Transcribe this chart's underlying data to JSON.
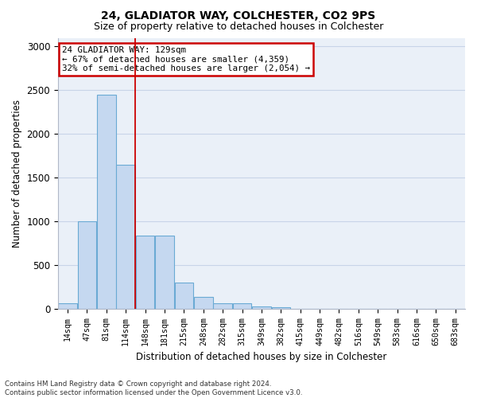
{
  "title1": "24, GLADIATOR WAY, COLCHESTER, CO2 9PS",
  "title2": "Size of property relative to detached houses in Colchester",
  "xlabel": "Distribution of detached houses by size in Colchester",
  "ylabel": "Number of detached properties",
  "categories": [
    "14sqm",
    "47sqm",
    "81sqm",
    "114sqm",
    "148sqm",
    "181sqm",
    "215sqm",
    "248sqm",
    "282sqm",
    "315sqm",
    "349sqm",
    "382sqm",
    "415sqm",
    "449sqm",
    "482sqm",
    "516sqm",
    "549sqm",
    "583sqm",
    "616sqm",
    "650sqm",
    "683sqm"
  ],
  "values": [
    60,
    1000,
    2450,
    1650,
    840,
    840,
    300,
    140,
    60,
    60,
    30,
    20,
    0,
    0,
    0,
    0,
    0,
    0,
    0,
    0,
    0
  ],
  "bar_color": "#c5d8f0",
  "bar_edge_color": "#6aaad4",
  "property_line_x": 3.5,
  "annotation_text": "24 GLADIATOR WAY: 129sqm\n← 67% of detached houses are smaller (4,359)\n32% of semi-detached houses are larger (2,054) →",
  "annotation_box_color": "#ffffff",
  "annotation_box_edge": "#cc0000",
  "grid_color": "#c8d4e8",
  "background_color": "#eaf0f8",
  "footer_text": "Contains HM Land Registry data © Crown copyright and database right 2024.\nContains public sector information licensed under the Open Government Licence v3.0.",
  "ylim": [
    0,
    3100
  ],
  "yticks": [
    0,
    500,
    1000,
    1500,
    2000,
    2500,
    3000
  ]
}
